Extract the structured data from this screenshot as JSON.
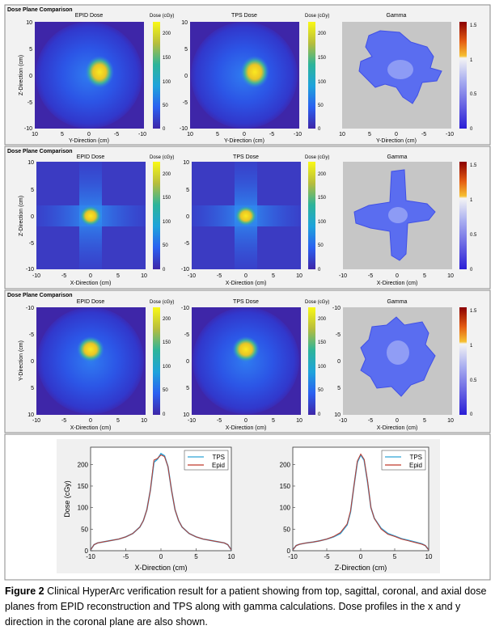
{
  "panels": [
    {
      "header": "Dose Plane Comparison",
      "subplots": [
        {
          "title": "EPID Dose",
          "xlabel": "Y-Direction (cm)",
          "ylabel": "Z-Direction (cm)",
          "xticks": [
            "10",
            "5",
            "0",
            "-5",
            "-10"
          ],
          "yticks": [
            "10",
            "5",
            "0",
            "-5",
            "-10"
          ]
        },
        {
          "title": "TPS Dose",
          "xlabel": "Y-Direction (cm)",
          "ylabel": "",
          "xticks": [
            "10",
            "5",
            "0",
            "-5",
            "-10"
          ],
          "yticks": [
            "10",
            "5",
            "0",
            "-5",
            "-10"
          ]
        },
        {
          "title": "Gamma",
          "xlabel": "Y-Direction (cm)",
          "ylabel": "",
          "xticks": [
            "10",
            "5",
            "0",
            "-5",
            "-10"
          ],
          "yticks": []
        }
      ],
      "dose_colorbars": {
        "label": "Dose (cGy)",
        "ticks": [
          "200",
          "150",
          "100",
          "50",
          "0"
        ]
      },
      "gamma_colorbar": {
        "ticks": [
          "1.5",
          "1",
          "0.5",
          "0"
        ]
      }
    },
    {
      "header": "Dose Plane Comparison",
      "subplots": [
        {
          "title": "EPID Dose",
          "xlabel": "X-Direction (cm)",
          "ylabel": "Z-Direction (cm)",
          "xticks": [
            "-10",
            "-5",
            "0",
            "5",
            "10"
          ],
          "yticks": [
            "10",
            "5",
            "0",
            "-5",
            "-10"
          ]
        },
        {
          "title": "TPS Dose",
          "xlabel": "X-Direction (cm)",
          "ylabel": "",
          "xticks": [
            "-10",
            "-5",
            "0",
            "5",
            "10"
          ],
          "yticks": [
            "10",
            "5",
            "0",
            "-5",
            "-10"
          ]
        },
        {
          "title": "Gamma",
          "xlabel": "X-Direction (cm)",
          "ylabel": "",
          "xticks": [
            "-10",
            "-5",
            "0",
            "5",
            "10"
          ],
          "yticks": []
        }
      ],
      "dose_colorbars": {
        "label": "Dose (cGy)",
        "ticks": [
          "200",
          "150",
          "100",
          "50",
          "0"
        ]
      },
      "gamma_colorbar": {
        "ticks": [
          "1.5",
          "1",
          "0.5",
          "0"
        ]
      }
    },
    {
      "header": "Dose Plane Comparison",
      "subplots": [
        {
          "title": "EPID Dose",
          "xlabel": "X-Direction (cm)",
          "ylabel": "Y-Direction (cm)",
          "xticks": [
            "-10",
            "-5",
            "0",
            "5",
            "10"
          ],
          "yticks": [
            "-10",
            "-5",
            "0",
            "5",
            "10"
          ]
        },
        {
          "title": "TPS Dose",
          "xlabel": "X-Direction (cm)",
          "ylabel": "",
          "xticks": [
            "-10",
            "-5",
            "0",
            "5",
            "10"
          ],
          "yticks": [
            "-10",
            "-5",
            "0",
            "5",
            "10"
          ]
        },
        {
          "title": "Gamma",
          "xlabel": "X-Direction (cm)",
          "ylabel": "",
          "xticks": [
            "-10",
            "-5",
            "0",
            "5",
            "10"
          ],
          "yticks": [
            "-10",
            "-5",
            "0",
            "5",
            "10"
          ]
        }
      ],
      "dose_colorbars": {
        "label": "Dose (cGy)",
        "ticks": [
          "200",
          "150",
          "100",
          "50",
          "0"
        ]
      },
      "gamma_colorbar": {
        "ticks": [
          "1.5",
          "1",
          "0.5",
          "0"
        ]
      }
    }
  ],
  "chart_data": [
    {
      "type": "line",
      "xlabel": "X-Direction (cm)",
      "ylabel": "Dose (cGy)",
      "xlim": [
        -10,
        10
      ],
      "ylim": [
        0,
        240
      ],
      "xticks": [
        "-10",
        "-5",
        "0",
        "5",
        "10"
      ],
      "yticks": [
        "0",
        "50",
        "100",
        "150",
        "200"
      ],
      "legend": "top-right",
      "series": [
        {
          "name": "TPS",
          "color": "#2fa4d8",
          "x": [
            -10,
            -9.5,
            -9,
            -8,
            -7,
            -6,
            -5,
            -4,
            -3,
            -2.5,
            -2,
            -1.5,
            -1,
            -0.5,
            0,
            0.5,
            1,
            1.5,
            2,
            2.5,
            3,
            4,
            5,
            6,
            7,
            8,
            9,
            9.5,
            10
          ],
          "y": [
            2,
            14,
            18,
            21,
            24,
            27,
            32,
            40,
            55,
            70,
            95,
            140,
            205,
            212,
            225,
            220,
            195,
            140,
            95,
            70,
            55,
            40,
            32,
            27,
            24,
            21,
            18,
            14,
            2
          ]
        },
        {
          "name": "Epid",
          "color": "#c0392b",
          "x": [
            -10,
            -9.5,
            -9,
            -8,
            -7,
            -6,
            -5,
            -4,
            -3,
            -2.5,
            -2,
            -1.5,
            -1,
            -0.5,
            0,
            0.5,
            1,
            1.5,
            2,
            2.5,
            3,
            4,
            5,
            6,
            7,
            8,
            9,
            9.5,
            10
          ],
          "y": [
            2,
            14,
            18,
            21,
            24,
            27,
            32,
            40,
            55,
            70,
            95,
            140,
            210,
            214,
            222,
            218,
            195,
            140,
            95,
            70,
            55,
            40,
            32,
            27,
            24,
            21,
            18,
            14,
            2
          ]
        }
      ]
    },
    {
      "type": "line",
      "xlabel": "Z-Direction (cm)",
      "ylabel": "",
      "xlim": [
        -10,
        10
      ],
      "ylim": [
        0,
        240
      ],
      "xticks": [
        "-10",
        "-5",
        "0",
        "5",
        "10"
      ],
      "yticks": [
        "0",
        "50",
        "100",
        "150",
        "200"
      ],
      "legend": "top-right",
      "series": [
        {
          "name": "TPS",
          "color": "#2fa4d8",
          "x": [
            -10,
            -9.5,
            -9,
            -8,
            -7,
            -6,
            -5,
            -4,
            -3,
            -2,
            -1.5,
            -1,
            -0.5,
            0,
            0.5,
            1,
            1.5,
            2,
            3,
            4,
            5,
            6,
            7,
            8,
            9,
            9.5,
            10
          ],
          "y": [
            2,
            12,
            15,
            18,
            20,
            23,
            27,
            32,
            40,
            60,
            90,
            150,
            205,
            222,
            210,
            160,
            100,
            75,
            52,
            40,
            34,
            28,
            24,
            20,
            16,
            12,
            2
          ]
        },
        {
          "name": "Epid",
          "color": "#c0392b",
          "x": [
            -10,
            -9.5,
            -9,
            -8,
            -7,
            -6,
            -5,
            -4,
            -3,
            -2,
            -1.5,
            -1,
            -0.5,
            0,
            0.5,
            1,
            1.5,
            2,
            3,
            4,
            5,
            6,
            7,
            8,
            9,
            9.5,
            10
          ],
          "y": [
            2,
            12,
            15,
            18,
            20,
            23,
            27,
            33,
            42,
            62,
            92,
            150,
            208,
            224,
            212,
            162,
            100,
            75,
            50,
            38,
            33,
            27,
            23,
            19,
            15,
            12,
            2
          ]
        }
      ]
    }
  ],
  "caption": {
    "label": "Figure 2",
    "text": " Clinical HyperArc verification result for a patient showing from top, sagittal, coronal, and axial dose planes from EPID reconstruction and TPS along with gamma calculations. Dose profiles in the x and y direction in the coronal plane are also shown."
  }
}
